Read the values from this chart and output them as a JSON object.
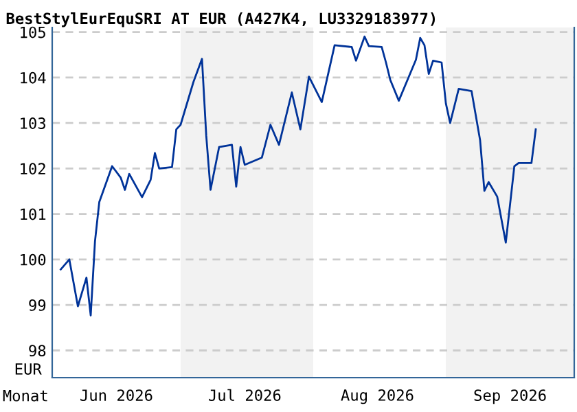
{
  "chart_data": {
    "type": "line",
    "title": "BestStylEurEquSRI AT EUR (A427K4, LU3329183977)",
    "xlabel": "Monat",
    "ylabel": "EUR",
    "x": [
      "2026-06-03",
      "2026-06-05",
      "2026-06-07",
      "2026-06-09",
      "2026-06-10",
      "2026-06-11",
      "2026-06-12",
      "2026-06-15",
      "2026-06-17",
      "2026-06-18",
      "2026-06-19",
      "2026-06-22",
      "2026-06-24",
      "2026-06-25",
      "2026-06-26",
      "2026-06-29",
      "2026-06-30",
      "2026-07-01",
      "2026-07-04",
      "2026-07-06",
      "2026-07-07",
      "2026-07-08",
      "2026-07-10",
      "2026-07-13",
      "2026-07-14",
      "2026-07-15",
      "2026-07-16",
      "2026-07-20",
      "2026-07-22",
      "2026-07-24",
      "2026-07-27",
      "2026-07-29",
      "2026-07-31",
      "2026-08-03",
      "2026-08-06",
      "2026-08-10",
      "2026-08-11",
      "2026-08-13",
      "2026-08-14",
      "2026-08-17",
      "2026-08-18",
      "2026-08-19",
      "2026-08-21",
      "2026-08-25",
      "2026-08-26",
      "2026-08-27",
      "2026-08-28",
      "2026-08-29",
      "2026-08-31",
      "2026-09-01",
      "2026-09-02",
      "2026-09-04",
      "2026-09-07",
      "2026-09-09",
      "2026-09-10",
      "2026-09-11",
      "2026-09-13",
      "2026-09-15",
      "2026-09-17",
      "2026-09-18",
      "2026-09-21",
      "2026-09-22"
    ],
    "series": [
      {
        "color": "#003399",
        "values": [
          99.78,
          100.0,
          98.97,
          99.6,
          98.77,
          100.4,
          101.26,
          102.05,
          101.8,
          101.53,
          101.88,
          101.37,
          101.75,
          102.34,
          102.0,
          102.03,
          102.86,
          102.96,
          103.9,
          104.41,
          102.72,
          101.53,
          102.47,
          102.52,
          101.6,
          102.47,
          102.08,
          102.24,
          102.96,
          102.52,
          103.67,
          102.86,
          104.02,
          103.46,
          104.71,
          104.67,
          104.37,
          104.9,
          104.69,
          104.67,
          104.33,
          103.95,
          103.49,
          104.39,
          104.87,
          104.71,
          104.08,
          104.37,
          104.33,
          103.43,
          103.0,
          103.75,
          103.7,
          102.62,
          101.51,
          101.7,
          101.38,
          100.37,
          102.05,
          102.12,
          102.12,
          102.86
        ]
      }
    ],
    "xlim": [
      "2026-06-01",
      "2026-10-01"
    ],
    "xticks": [
      {
        "value": "2026-06-16",
        "label": "Jun 2026"
      },
      {
        "value": "2026-07-16",
        "label": "Jul 2026"
      },
      {
        "value": "2026-08-16",
        "label": "Aug 2026"
      },
      {
        "value": "2026-09-16",
        "label": "Sep 2026"
      }
    ],
    "ylim": [
      97.4,
      105.1
    ],
    "yticks": [
      98,
      99,
      100,
      101,
      102,
      103,
      104,
      105
    ],
    "bands": [
      {
        "axis": "x",
        "from": "2026-07-01",
        "to": "2026-08-01",
        "color": "#f2f2f2"
      },
      {
        "axis": "x",
        "from": "2026-09-01",
        "to": "2026-10-01",
        "color": "#f2f2f2"
      }
    ],
    "grid": "y",
    "line_style": "solid",
    "marker": "none"
  }
}
